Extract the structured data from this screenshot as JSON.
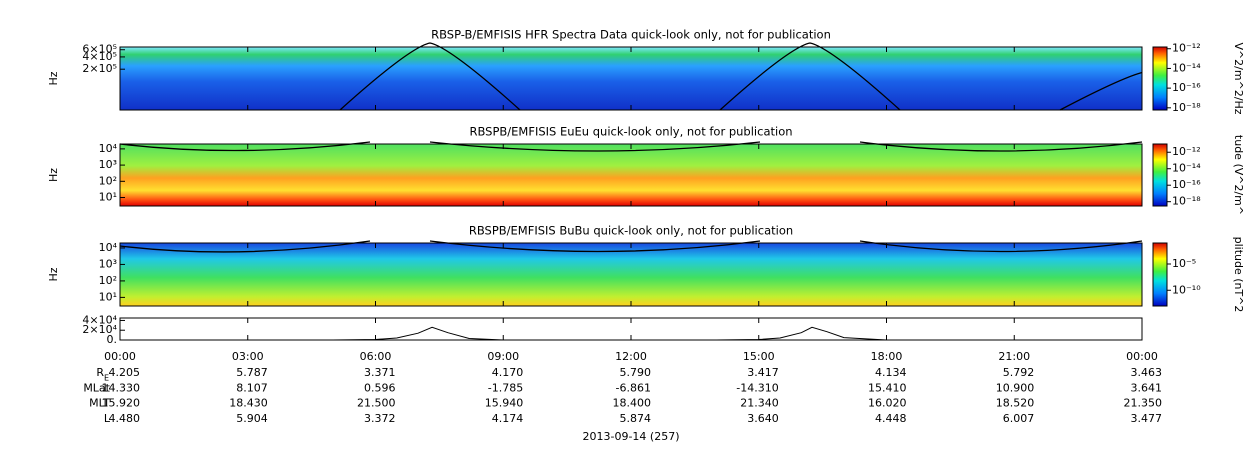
{
  "chart_data": [
    {
      "type": "spectrogram",
      "title": "RBSP-B/EMFISIS  HFR Spectra Data quick-look only, not for publication",
      "ylabel": "Hz",
      "log_y": true,
      "ylim": [
        20000,
        700000
      ],
      "yticks": [
        {
          "value": 200000,
          "label": "2×10⁵"
        },
        {
          "value": 400000,
          "label": "4×10⁵"
        },
        {
          "value": 600000,
          "label": "6×10⁵"
        }
      ],
      "zlabel": "V^2/m^2/Hz",
      "zlim": [
        6e-19,
        1.5e-12
      ],
      "zticks": [
        {
          "value": 1e-12,
          "label": "10⁻¹²"
        },
        {
          "value": 1e-14,
          "label": "10⁻¹⁴"
        },
        {
          "value": 1e-16,
          "label": "10⁻¹⁶"
        },
        {
          "value": 1e-18,
          "label": "10⁻¹⁸"
        }
      ]
    },
    {
      "type": "spectrogram",
      "title": "RBSPB/EMFISIS  EuEu quick-look only, not for publication",
      "ylabel": "Hz",
      "log_y": true,
      "ylim": [
        3,
        20000
      ],
      "yticks": [
        {
          "value": 10,
          "label": "10¹"
        },
        {
          "value": 100,
          "label": "10²"
        },
        {
          "value": 1000,
          "label": "10³"
        },
        {
          "value": 10000,
          "label": "10⁴"
        }
      ],
      "zlabel": "tude (V^2/m^",
      "zlim": [
        3e-19,
        1e-11
      ],
      "zticks": [
        {
          "value": 1e-12,
          "label": "10⁻¹²"
        },
        {
          "value": 1e-14,
          "label": "10⁻¹⁴"
        },
        {
          "value": 1e-16,
          "label": "10⁻¹⁶"
        },
        {
          "value": 1e-18,
          "label": "10⁻¹⁸"
        }
      ]
    },
    {
      "type": "spectrogram",
      "title": "RBSPB/EMFISIS  BuBu quick-look only, not for publication",
      "ylabel": "Hz",
      "log_y": true,
      "ylim": [
        3,
        20000
      ],
      "yticks": [
        {
          "value": 10,
          "label": "10¹"
        },
        {
          "value": 100,
          "label": "10²"
        },
        {
          "value": 1000,
          "label": "10³"
        },
        {
          "value": 10000,
          "label": "10⁴"
        }
      ],
      "zlabel": "plitude (nT^2",
      "zlim": [
        1e-13,
        0.1
      ],
      "zticks": [
        {
          "value": 1e-05,
          "label": "10⁻⁵"
        },
        {
          "value": 1e-10,
          "label": "10⁻¹⁰"
        }
      ]
    },
    {
      "type": "line",
      "color": "#000000",
      "x": [
        0,
        5,
        6,
        6.5,
        7,
        7.33,
        7.7,
        8.2,
        9,
        14,
        15,
        15.5,
        16,
        16.25,
        16.6,
        17,
        18,
        24
      ],
      "values": [
        0,
        0,
        1000,
        4000,
        14000,
        26000,
        15000,
        3000,
        0,
        0,
        1000,
        4000,
        15000,
        26000,
        17000,
        5000,
        0,
        0
      ],
      "ylim": [
        0,
        45000
      ],
      "yticks": [
        {
          "value": 0,
          "label": "0."
        },
        {
          "value": 20000,
          "label": "2×10⁴"
        },
        {
          "value": 40000,
          "label": "4×10⁴"
        }
      ]
    }
  ],
  "x_axis": {
    "xlim": [
      0,
      24
    ],
    "xlabel": "2013-09-14 (257)",
    "xticks": [
      {
        "value": 0,
        "label": "00:00"
      },
      {
        "value": 3,
        "label": "03:00"
      },
      {
        "value": 6,
        "label": "06:00"
      },
      {
        "value": 9,
        "label": "09:00"
      },
      {
        "value": 12,
        "label": "12:00"
      },
      {
        "value": 15,
        "label": "15:00"
      },
      {
        "value": 18,
        "label": "18:00"
      },
      {
        "value": 21,
        "label": "21:00"
      },
      {
        "value": 24,
        "label": "00:00"
      }
    ]
  },
  "ephemeris": [
    {
      "label": "R",
      "sub": "E",
      "values": [
        "4.205",
        "5.787",
        "3.371",
        "4.170",
        "5.790",
        "3.417",
        "4.134",
        "5.792",
        "3.463"
      ]
    },
    {
      "label": "MLat",
      "values": [
        "14.330",
        "8.107",
        "0.596",
        "-1.785",
        "-6.861",
        "-14.310",
        "15.410",
        "10.900",
        "3.641"
      ]
    },
    {
      "label": "MLT",
      "values": [
        "15.920",
        "18.430",
        "21.500",
        "15.940",
        "18.400",
        "21.340",
        "16.020",
        "18.520",
        "21.350"
      ]
    },
    {
      "label": "L",
      "values": [
        "4.480",
        "5.904",
        "3.372",
        "4.174",
        "5.874",
        "3.640",
        "4.448",
        "6.007",
        "3.477"
      ]
    }
  ]
}
